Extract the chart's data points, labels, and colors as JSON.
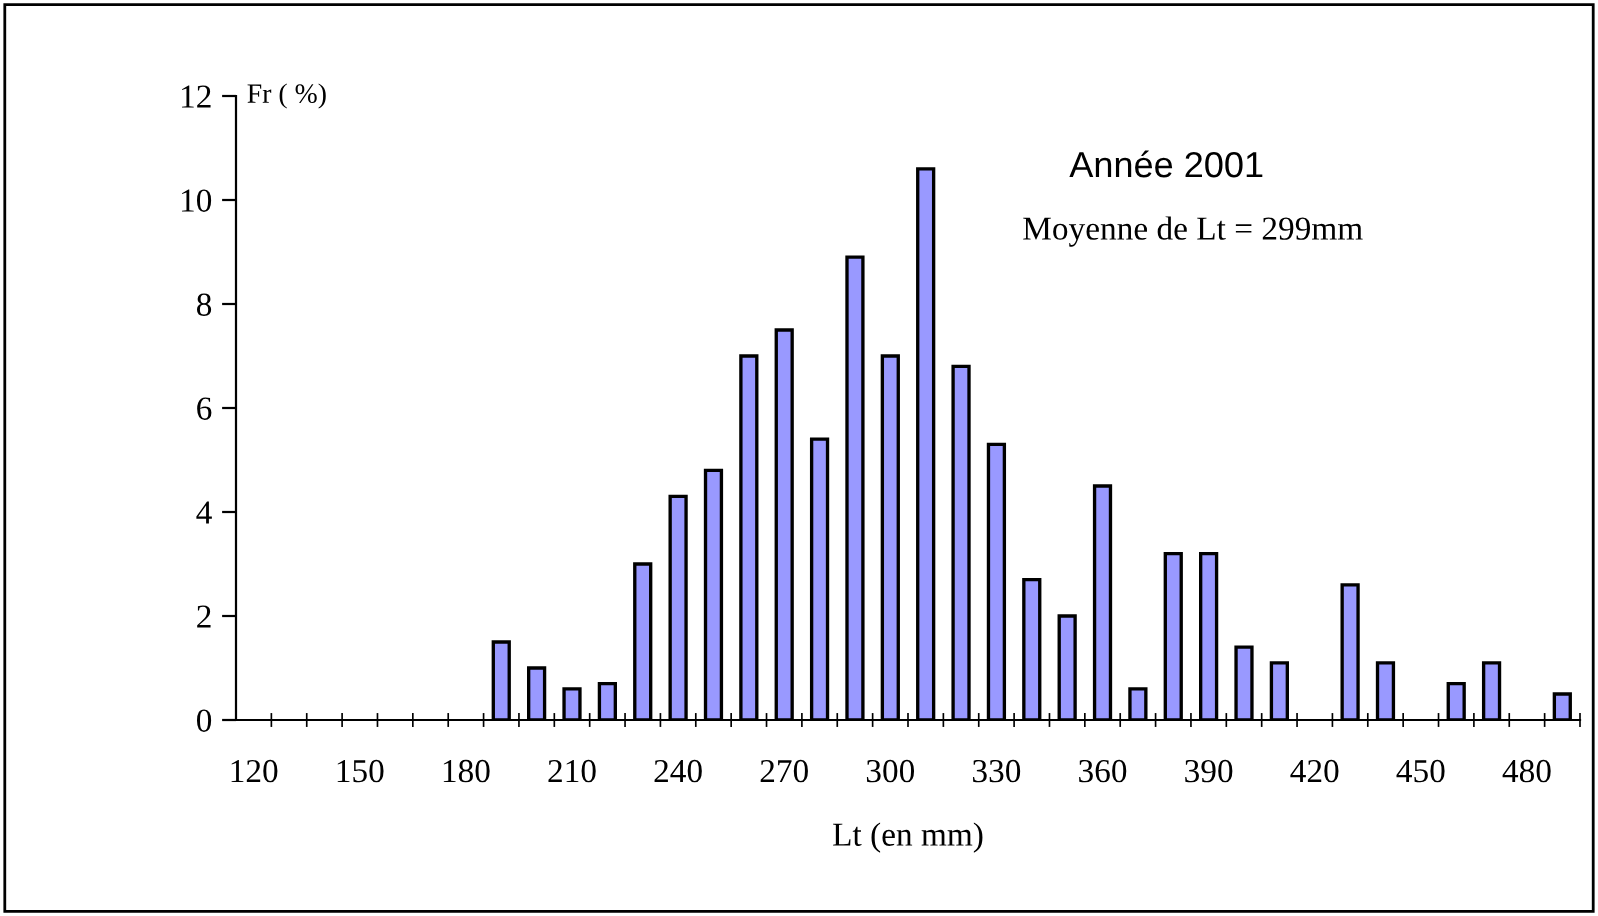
{
  "chart_data": {
    "type": "bar",
    "title": "Année 2001",
    "xlabel": "Lt (en mm)",
    "ylabel": "Fr ( %)",
    "annotations": [
      "Moyenne de Lt = 299mm"
    ],
    "categories": [
      "120",
      null,
      null,
      "150",
      null,
      null,
      "180",
      null,
      null,
      "210",
      null,
      null,
      "240",
      null,
      null,
      "270",
      null,
      null,
      "300",
      null,
      null,
      "330",
      null,
      null,
      "360",
      null,
      null,
      "390",
      null,
      null,
      "420",
      null,
      null,
      "450",
      null,
      null,
      "480",
      null
    ],
    "series": [
      {
        "color": "#9999ff",
        "values": [
          0,
          0,
          0,
          0,
          0,
          0,
          0,
          1.5,
          1.0,
          0.6,
          0.7,
          3.0,
          4.3,
          4.8,
          7.0,
          7.5,
          5.4,
          8.9,
          7.0,
          10.6,
          6.8,
          5.3,
          2.7,
          2.0,
          4.5,
          0.6,
          3.2,
          3.2,
          1.4,
          1.1,
          0,
          2.6,
          1.1,
          0,
          0.7,
          1.1,
          0,
          0.5
        ]
      }
    ],
    "ylim": [
      0,
      12
    ],
    "yticks": [
      0,
      2,
      4,
      6,
      8,
      10,
      12
    ],
    "grid": false,
    "legend": false
  }
}
